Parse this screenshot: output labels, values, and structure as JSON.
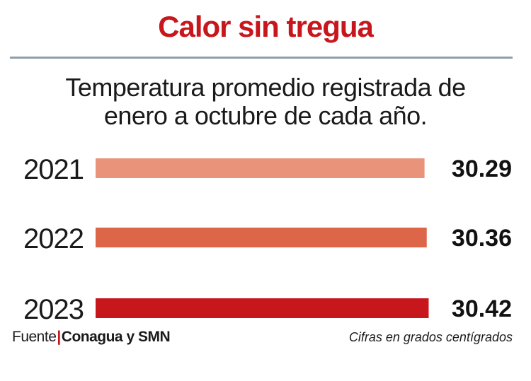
{
  "title": "Calor sin tregua",
  "subtitle_line1": "Temperatura promedio registrada de",
  "subtitle_line2": "enero a octubre de cada año.",
  "chart_data": {
    "type": "bar",
    "orientation": "horizontal",
    "title": "Calor sin tregua",
    "subtitle": "Temperatura promedio registrada de enero a octubre de cada año.",
    "categories": [
      "2021",
      "2022",
      "2023"
    ],
    "values": [
      30.29,
      30.36,
      30.42
    ],
    "value_labels": [
      "30.29",
      "30.36",
      "30.42"
    ],
    "bar_colors": [
      "#e8937a",
      "#dd6649",
      "#c8161d"
    ],
    "grid": false,
    "legend": "none"
  },
  "footer": {
    "source_prefix": "Fuente",
    "separator": "|",
    "source": "Conagua y SMN",
    "note": "Cifras en grados centígrados"
  },
  "colors": {
    "title": "#c8161d",
    "rule": "#8fa0ad"
  }
}
